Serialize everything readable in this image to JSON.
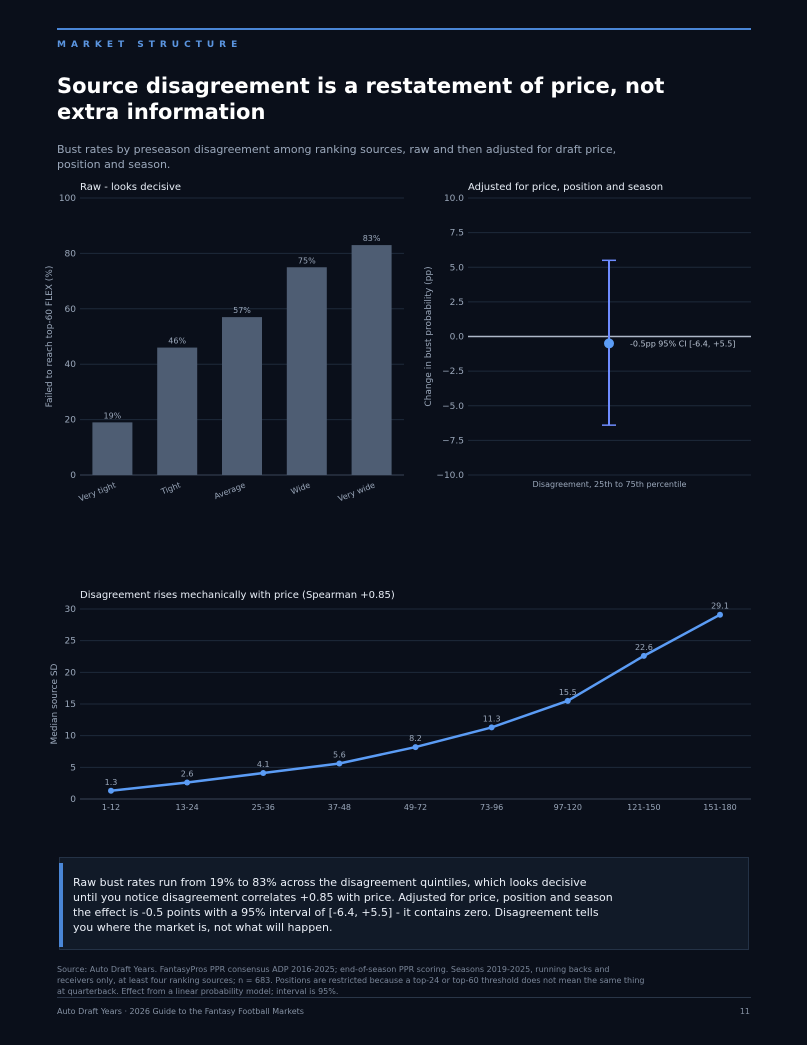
{
  "page": {
    "kicker": "MARKET STRUCTURE",
    "title": "Source disagreement is a restatement of price, not extra information",
    "subtitle": "Bust rates by preseason disagreement among ranking sources, raw and then adjusted for draft price, position and season.",
    "callout": "Raw bust rates run from 19% to 83% across the disagreement quintiles, which looks decisive until you notice disagreement correlates +0.85 with price. Adjusted for price, position and season the effect is -0.5 points with a 95% interval of [-6.4, +5.5] - it contains zero. Disagreement tells you where the market is, not what will happen.",
    "source": "Source: Auto Draft Years. FantasyPros PPR consensus ADP 2016-2025; end-of-season PPR scoring. Seasons 2019-2025, running backs and receivers only, at least four ranking sources; n = 683. Positions are restricted because a top-24 or top-60 threshold does not mean the same thing at quarterback. Effect from a linear probability model; interval is 95%.",
    "footer_left": "Auto Draft Years · 2026 Guide to the Fantasy Football Markets",
    "footer_page": "11"
  },
  "colors": {
    "background": "#0a0f1a",
    "bar": "#4e5d73",
    "accent": "#6f8cff",
    "line": "#5b9cf5",
    "grid": "#1e2a3a"
  },
  "chart_data": [
    {
      "type": "bar",
      "title": "Raw - looks decisive",
      "ylabel": "Failed to reach top-60 FLEX (%)",
      "categories": [
        "Very tight",
        "Tight",
        "Average",
        "Wide",
        "Very wide"
      ],
      "values": [
        19,
        46,
        57,
        75,
        83
      ],
      "value_labels": [
        "19%",
        "46%",
        "57%",
        "75%",
        "83%"
      ],
      "ylim": [
        0,
        100
      ],
      "yticks": [
        0,
        20,
        40,
        60,
        80,
        100
      ],
      "grid": true
    },
    {
      "type": "scatter",
      "title": "Adjusted for price, position and season",
      "ylabel": "Change in bust probability (pp)",
      "xlabel": "Disagreement, 25th to 75th percentile",
      "estimate": -0.5,
      "ci": [
        -6.4,
        5.5
      ],
      "annotation": "-0.5pp  95% CI [-6.4, +5.5]",
      "ylim": [
        -10,
        10
      ],
      "yticks": [
        -10,
        -7.5,
        -5,
        -2.5,
        0,
        2.5,
        5,
        7.5,
        10
      ],
      "ytick_labels": [
        "−10.0",
        "−7.5",
        "−5.0",
        "−2.5",
        "0.0",
        "2.5",
        "5.0",
        "7.5",
        "10.0"
      ],
      "grid": true
    },
    {
      "type": "line",
      "title": "Disagreement rises mechanically with price (Spearman +0.85)",
      "ylabel": "Median source SD",
      "categories": [
        "1-12",
        "13-24",
        "25-36",
        "37-48",
        "49-72",
        "73-96",
        "97-120",
        "121-150",
        "151-180"
      ],
      "values": [
        1.3,
        2.6,
        4.1,
        5.6,
        8.2,
        11.3,
        15.5,
        22.6,
        29.1
      ],
      "ylim": [
        0,
        30
      ],
      "yticks": [
        0,
        5,
        10,
        15,
        20,
        25,
        30
      ],
      "grid": true
    }
  ]
}
